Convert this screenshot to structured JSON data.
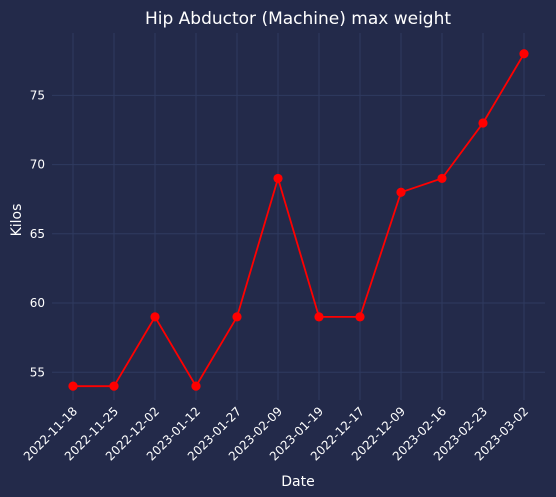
{
  "chart_data": {
    "type": "line",
    "title": "Hip Abductor (Machine) max weight",
    "xlabel": "Date",
    "ylabel": "Kilos",
    "categories": [
      "2022-11-18",
      "2022-11-25",
      "2022-12-02",
      "2023-01-12",
      "2023-01-27",
      "2023-02-09",
      "2023-01-19",
      "2022-12-17",
      "2022-12-09",
      "2023-02-16",
      "2023-02-23",
      "2023-03-02"
    ],
    "series": [
      {
        "values": [
          54,
          54,
          59,
          54,
          59,
          69,
          59,
          59,
          68,
          69,
          73,
          78
        ]
      }
    ],
    "yticks": [
      55,
      60,
      65,
      70,
      75
    ],
    "ylim": [
      53,
      79.5
    ],
    "grid": true,
    "line_color": "#ff0000",
    "background_color": "#232a4a",
    "grid_color": "#2f3a60"
  }
}
